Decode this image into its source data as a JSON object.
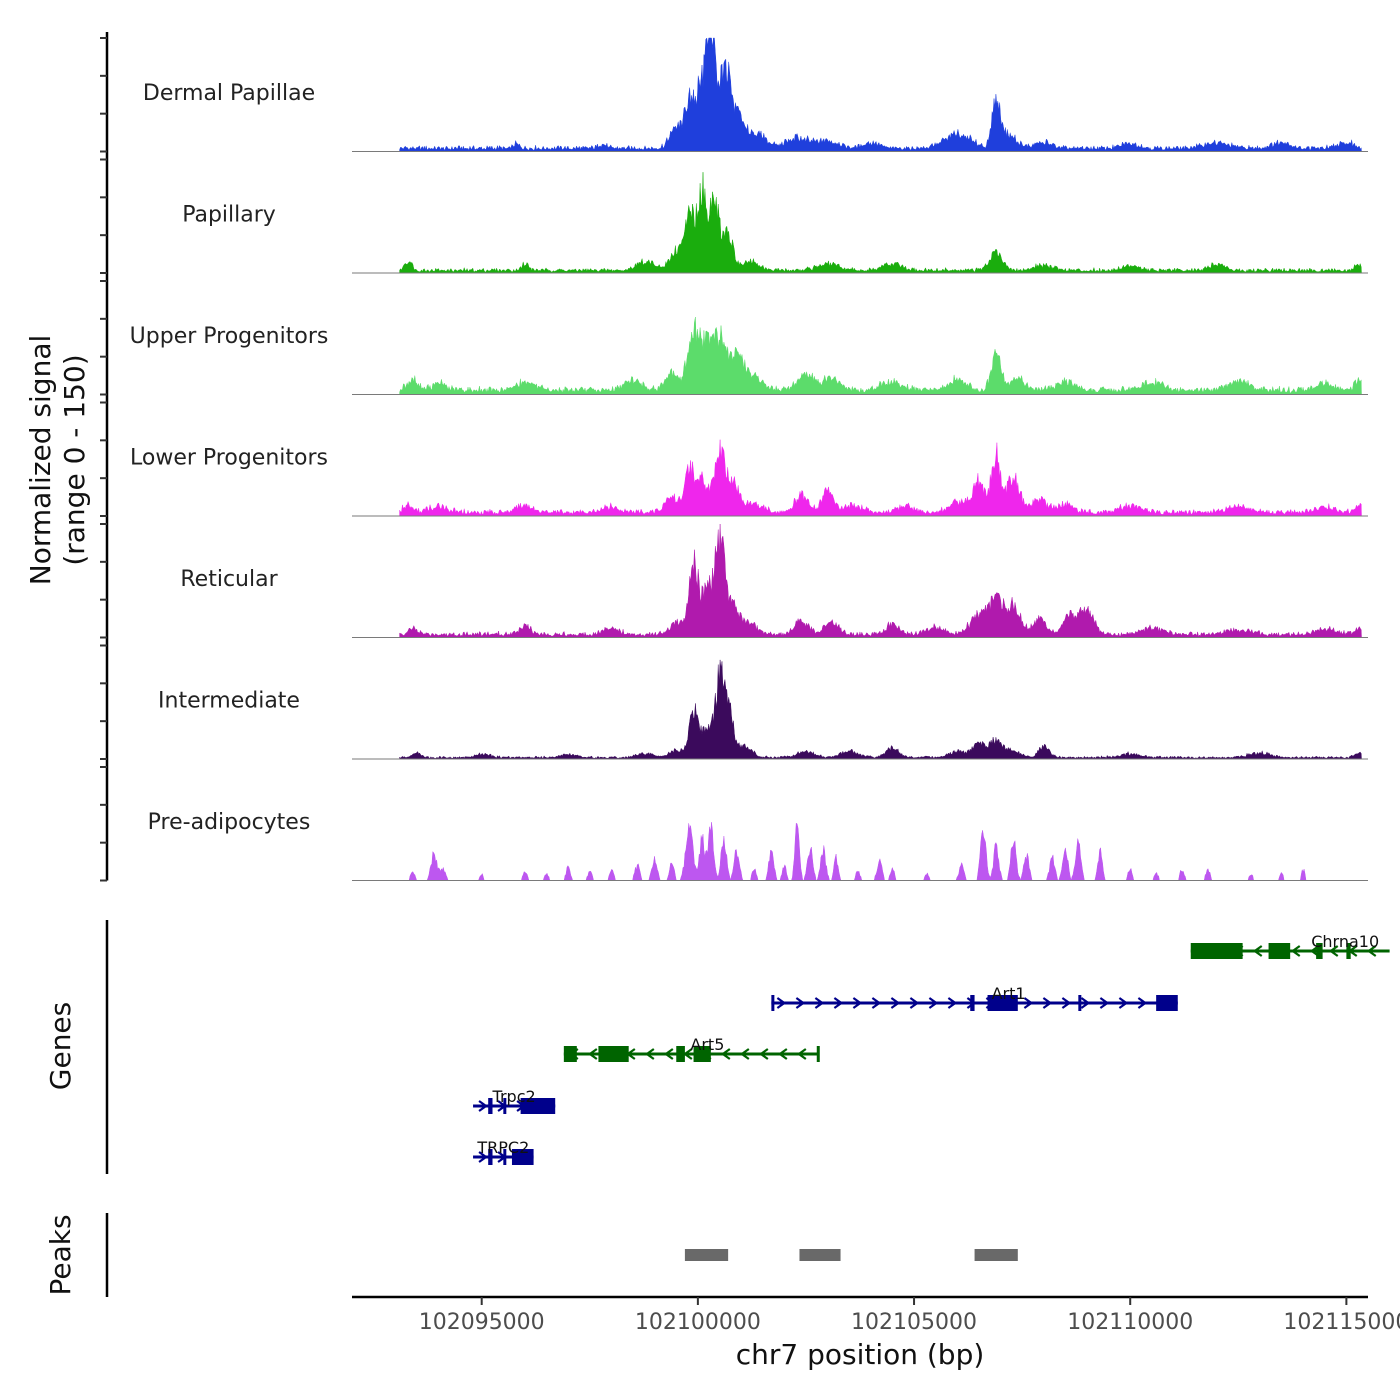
{
  "chart_data": {
    "type": "area",
    "title": "",
    "region": {
      "chrom": "chr7",
      "start": 102092000,
      "end": 102115500
    },
    "xlabel": "chr7 position (bp)",
    "xticks": [
      102095000,
      102100000,
      102105000,
      102110000,
      102115000
    ],
    "xtick_labels": [
      "102095000",
      "102100000",
      "102105000",
      "102110000",
      "102115000"
    ],
    "ylabel_line1": "Normalized signal",
    "ylabel_line2": "(range 0 - 150)",
    "ylim": [
      0,
      150
    ],
    "coverage_x_range": [
      102093100,
      102115350
    ],
    "tracks": [
      {
        "name": "Dermal Papillae",
        "color": "#1f3fdc",
        "background": 6,
        "peaks": [
          [
            102095800,
            5,
            80
          ],
          [
            102097800,
            5,
            90
          ],
          [
            102099500,
            28,
            150
          ],
          [
            102099800,
            55,
            110
          ],
          [
            102100100,
            85,
            160
          ],
          [
            102100300,
            140,
            90
          ],
          [
            102100600,
            95,
            140
          ],
          [
            102100900,
            40,
            200
          ],
          [
            102101400,
            18,
            200
          ],
          [
            102102300,
            14,
            250
          ],
          [
            102103000,
            10,
            250
          ],
          [
            102104000,
            7,
            200
          ],
          [
            102106000,
            20,
            300
          ],
          [
            102106900,
            70,
            90
          ],
          [
            102107200,
            18,
            180
          ],
          [
            102108000,
            8,
            200
          ],
          [
            102110000,
            6,
            200
          ],
          [
            102112000,
            7,
            300
          ],
          [
            102113500,
            8,
            200
          ],
          [
            102115000,
            7,
            200
          ]
        ]
      },
      {
        "name": "Papillary",
        "color": "#1aad0d",
        "background": 5,
        "peaks": [
          [
            102093300,
            12,
            80
          ],
          [
            102096000,
            8,
            90
          ],
          [
            102098800,
            12,
            200
          ],
          [
            102099500,
            25,
            150
          ],
          [
            102099800,
            65,
            110
          ],
          [
            102100100,
            110,
            120
          ],
          [
            102100400,
            90,
            100
          ],
          [
            102100700,
            50,
            110
          ],
          [
            102101200,
            12,
            200
          ],
          [
            102103000,
            8,
            250
          ],
          [
            102104500,
            9,
            200
          ],
          [
            102106900,
            25,
            150
          ],
          [
            102108000,
            7,
            200
          ],
          [
            102110000,
            6,
            200
          ],
          [
            102112000,
            7,
            200
          ],
          [
            102115300,
            8,
            100
          ]
        ]
      },
      {
        "name": "Upper Progenitors",
        "color": "#5cdc6b",
        "background": 8,
        "peaks": [
          [
            102093400,
            14,
            120
          ],
          [
            102094000,
            10,
            150
          ],
          [
            102096000,
            12,
            200
          ],
          [
            102098500,
            14,
            200
          ],
          [
            102099400,
            25,
            150
          ],
          [
            102099900,
            85,
            130
          ],
          [
            102100200,
            55,
            120
          ],
          [
            102100500,
            70,
            150
          ],
          [
            102100900,
            45,
            160
          ],
          [
            102101300,
            18,
            200
          ],
          [
            102102500,
            20,
            200
          ],
          [
            102103100,
            15,
            200
          ],
          [
            102104500,
            12,
            250
          ],
          [
            102106000,
            14,
            200
          ],
          [
            102106900,
            45,
            110
          ],
          [
            102107400,
            15,
            180
          ],
          [
            102108500,
            12,
            200
          ],
          [
            102110500,
            10,
            250
          ],
          [
            102112500,
            12,
            250
          ],
          [
            102114500,
            10,
            200
          ],
          [
            102115300,
            14,
            100
          ]
        ]
      },
      {
        "name": "Lower Progenitors",
        "color": "#ef26ec",
        "background": 7,
        "peaks": [
          [
            102093300,
            10,
            100
          ],
          [
            102094000,
            8,
            200
          ],
          [
            102096000,
            8,
            200
          ],
          [
            102098000,
            8,
            200
          ],
          [
            102099400,
            20,
            150
          ],
          [
            102099800,
            55,
            120
          ],
          [
            102100100,
            40,
            140
          ],
          [
            102100500,
            80,
            120
          ],
          [
            102100800,
            40,
            140
          ],
          [
            102101300,
            12,
            200
          ],
          [
            102102400,
            22,
            150
          ],
          [
            102103000,
            30,
            130
          ],
          [
            102103600,
            10,
            200
          ],
          [
            102104800,
            8,
            200
          ],
          [
            102106000,
            12,
            200
          ],
          [
            102106500,
            40,
            150
          ],
          [
            102106900,
            75,
            110
          ],
          [
            102107300,
            45,
            150
          ],
          [
            102107900,
            18,
            150
          ],
          [
            102108500,
            10,
            200
          ],
          [
            102110000,
            8,
            250
          ],
          [
            102112500,
            8,
            250
          ],
          [
            102114500,
            8,
            200
          ],
          [
            102115300,
            10,
            100
          ]
        ]
      },
      {
        "name": "Reticular",
        "color": "#b01aad",
        "background": 6,
        "peaks": [
          [
            102093400,
            8,
            100
          ],
          [
            102096000,
            10,
            150
          ],
          [
            102098000,
            8,
            200
          ],
          [
            102099500,
            15,
            150
          ],
          [
            102099900,
            95,
            110
          ],
          [
            102100200,
            55,
            120
          ],
          [
            102100500,
            120,
            120
          ],
          [
            102100800,
            40,
            150
          ],
          [
            102101200,
            15,
            150
          ],
          [
            102102400,
            18,
            150
          ],
          [
            102103100,
            18,
            150
          ],
          [
            102104500,
            14,
            150
          ],
          [
            102105500,
            10,
            200
          ],
          [
            102106500,
            25,
            200
          ],
          [
            102106900,
            45,
            150
          ],
          [
            102107300,
            40,
            150
          ],
          [
            102107900,
            22,
            150
          ],
          [
            102108600,
            25,
            150
          ],
          [
            102109000,
            35,
            160
          ],
          [
            102110500,
            8,
            250
          ],
          [
            102112500,
            7,
            250
          ],
          [
            102114500,
            7,
            250
          ],
          [
            102115300,
            8,
            100
          ]
        ]
      },
      {
        "name": "Intermediate",
        "color": "#3b0a5c",
        "background": 3,
        "peaks": [
          [
            102093500,
            6,
            100
          ],
          [
            102095000,
            5,
            150
          ],
          [
            102097000,
            4,
            200
          ],
          [
            102098800,
            5,
            200
          ],
          [
            102099500,
            10,
            150
          ],
          [
            102099900,
            65,
            100
          ],
          [
            102100200,
            35,
            120
          ],
          [
            102100500,
            95,
            110
          ],
          [
            102100700,
            60,
            120
          ],
          [
            102101100,
            15,
            150
          ],
          [
            102102500,
            8,
            200
          ],
          [
            102103500,
            8,
            200
          ],
          [
            102104500,
            12,
            150
          ],
          [
            102106000,
            8,
            200
          ],
          [
            102106500,
            18,
            150
          ],
          [
            102106900,
            22,
            150
          ],
          [
            102107300,
            10,
            150
          ],
          [
            102108000,
            15,
            120
          ],
          [
            102110000,
            5,
            250
          ],
          [
            102113000,
            6,
            250
          ],
          [
            102115300,
            6,
            100
          ]
        ]
      },
      {
        "name": "Pre-adipocytes",
        "color": "#bd57f0",
        "background": 0,
        "peaks": [
          [
            102093400,
            10,
            60
          ],
          [
            102093900,
            35,
            70
          ],
          [
            102094100,
            15,
            60
          ],
          [
            102095000,
            8,
            50
          ],
          [
            102096000,
            12,
            50
          ],
          [
            102096500,
            10,
            50
          ],
          [
            102097000,
            18,
            50
          ],
          [
            102097500,
            12,
            50
          ],
          [
            102098000,
            15,
            50
          ],
          [
            102098600,
            20,
            60
          ],
          [
            102099000,
            30,
            60
          ],
          [
            102099400,
            25,
            50
          ],
          [
            102099800,
            75,
            80
          ],
          [
            102100100,
            60,
            60
          ],
          [
            102100300,
            80,
            60
          ],
          [
            102100600,
            55,
            60
          ],
          [
            102100900,
            40,
            60
          ],
          [
            102101300,
            15,
            50
          ],
          [
            102101700,
            40,
            60
          ],
          [
            102102000,
            20,
            50
          ],
          [
            102102300,
            80,
            50
          ],
          [
            102102600,
            45,
            60
          ],
          [
            102102900,
            40,
            60
          ],
          [
            102103200,
            30,
            50
          ],
          [
            102103700,
            12,
            50
          ],
          [
            102104200,
            25,
            60
          ],
          [
            102104500,
            15,
            50
          ],
          [
            102105300,
            10,
            50
          ],
          [
            102106100,
            20,
            60
          ],
          [
            102106600,
            70,
            60
          ],
          [
            102106900,
            45,
            60
          ],
          [
            102107300,
            55,
            60
          ],
          [
            102107600,
            35,
            60
          ],
          [
            102108200,
            30,
            60
          ],
          [
            102108500,
            40,
            60
          ],
          [
            102108800,
            55,
            60
          ],
          [
            102109300,
            40,
            50
          ],
          [
            102110000,
            15,
            50
          ],
          [
            102110600,
            10,
            50
          ],
          [
            102111200,
            15,
            50
          ],
          [
            102111800,
            15,
            50
          ],
          [
            102112800,
            8,
            50
          ],
          [
            102113500,
            10,
            40
          ],
          [
            102114000,
            15,
            40
          ]
        ]
      }
    ],
    "genes": [
      {
        "name": "Chrna10",
        "strand": "-",
        "start": 102111400,
        "end": 102116000,
        "color": "#006400",
        "exons": [
          [
            102111400,
            102112600
          ],
          [
            102113200,
            102113700
          ],
          [
            102114300,
            102114450
          ],
          [
            102115000,
            102115100
          ]
        ]
      },
      {
        "name": "Art1",
        "strand": "+",
        "start": 102101700,
        "end": 102111100,
        "color": "#00008b",
        "exons": [
          [
            102101700,
            102101760
          ],
          [
            102106300,
            102106400
          ],
          [
            102106700,
            102107400
          ],
          [
            102108800,
            102108840
          ],
          [
            102110600,
            102111100
          ]
        ]
      },
      {
        "name": "Art5",
        "strand": "-",
        "start": 102096900,
        "end": 102102800,
        "color": "#006400",
        "exons": [
          [
            102096900,
            102097200
          ],
          [
            102097700,
            102098400
          ],
          [
            102099500,
            102099700
          ],
          [
            102099900,
            102100300
          ],
          [
            102102750,
            102102800
          ]
        ]
      },
      {
        "name": "Trpc2",
        "strand": "+",
        "start": 102094800,
        "end": 102096700,
        "color": "#00008b",
        "exons": [
          [
            102095150,
            102095250
          ],
          [
            102095500,
            102095520
          ],
          [
            102095900,
            102096700
          ]
        ]
      },
      {
        "name": "TRPC2",
        "strand": "+",
        "start": 102094800,
        "end": 102096200,
        "color": "#00008b",
        "exons": [
          [
            102095150,
            102095250
          ],
          [
            102095500,
            102095520
          ],
          [
            102095700,
            102096200
          ]
        ]
      }
    ],
    "peaks": [
      [
        102099700,
        102100700
      ],
      [
        102102350,
        102103300
      ],
      [
        102106400,
        102107400
      ]
    ],
    "genes_label": "Genes",
    "peaks_label": "Peaks"
  }
}
